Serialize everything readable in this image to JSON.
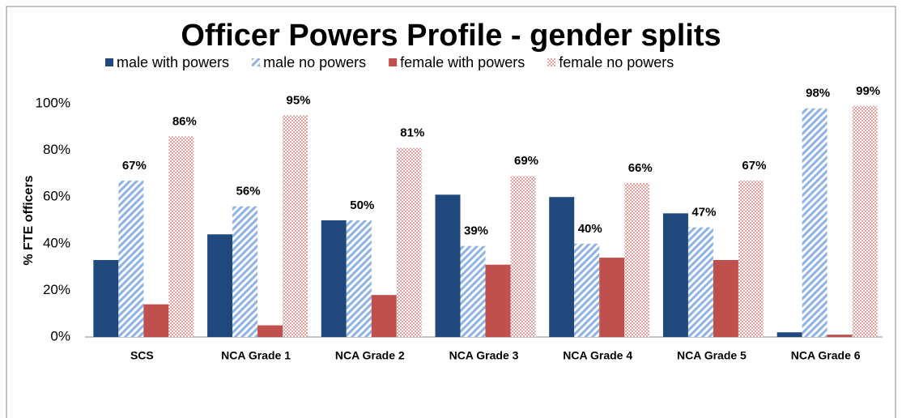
{
  "chart_data": {
    "type": "bar",
    "title": "Officer Powers Profile - gender splits",
    "y_label": "% FTE officers",
    "categories": [
      "SCS",
      "NCA Grade 1",
      "NCA Grade 2",
      "NCA Grade 3",
      "NCA Grade 4",
      "NCA Grade 5",
      "NCA Grade 6"
    ],
    "series": [
      {
        "name": "male with powers",
        "color": "#1f497d",
        "pattern": "solid",
        "values": [
          33,
          44,
          50,
          61,
          60,
          53,
          2
        ]
      },
      {
        "name": "male no powers",
        "color": "#8db3e2",
        "pattern": "hatch",
        "values": [
          67,
          56,
          50,
          39,
          40,
          47,
          98
        ],
        "value_labels": [
          "67%",
          "56%",
          "50%",
          "39%",
          "40%",
          "47%",
          "98%"
        ]
      },
      {
        "name": "female with powers",
        "color": "#c0504d",
        "pattern": "solid",
        "values": [
          14,
          5,
          18,
          31,
          34,
          33,
          1
        ]
      },
      {
        "name": "female no powers",
        "color": "#e39d9b",
        "pattern": "dots",
        "values": [
          86,
          95,
          81,
          69,
          66,
          67,
          99
        ],
        "value_labels": [
          "86%",
          "95%",
          "81%",
          "69%",
          "66%",
          "67%",
          "99%"
        ]
      }
    ],
    "ylim": [
      0,
      100
    ],
    "yticks": [
      {
        "value": 0,
        "label": "0%"
      },
      {
        "value": 20,
        "label": "20%"
      },
      {
        "value": 40,
        "label": "40%"
      },
      {
        "value": 60,
        "label": "60%"
      },
      {
        "value": 80,
        "label": "80%"
      },
      {
        "value": 100,
        "label": "100%"
      }
    ],
    "grid": false,
    "legend": "top"
  }
}
